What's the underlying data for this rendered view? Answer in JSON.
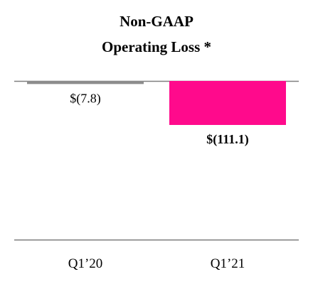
{
  "chart_data": {
    "type": "bar",
    "title_lines": [
      "Non-GAAP",
      "Operating Loss *"
    ],
    "categories": [
      "Q1’20",
      "Q1’21"
    ],
    "values": [
      -7.8,
      -111.1
    ],
    "value_labels": [
      "$(7.8)",
      "$(111.1)"
    ],
    "bar_colors": [
      "#8c8c8c",
      "#ff0a8c"
    ],
    "label_bold": [
      false,
      true
    ],
    "xlabel": "",
    "ylabel": "",
    "ylim": [
      -300,
      0
    ],
    "grid": false,
    "legend": "none"
  }
}
